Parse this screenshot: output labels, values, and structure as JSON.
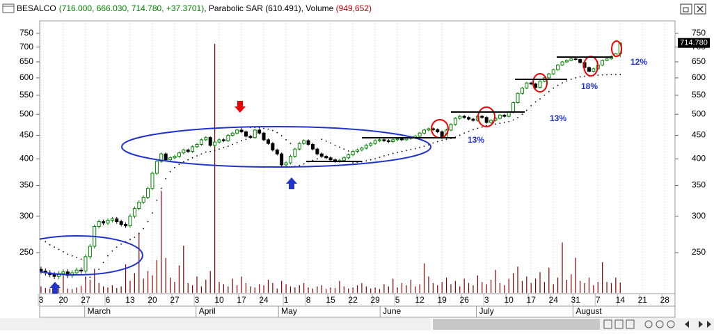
{
  "chart_data": {
    "type": "candlestick",
    "header": {
      "symbol": "BESALCO",
      "ohlc": "(716.000, 666.030, 714.780, +37.3701)",
      "sar": ", Parabolic SAR (610.491)",
      "volume_name": ", Volume ",
      "volume_value": "(949,652)"
    },
    "last_price_label": "714.780",
    "open": [
      230,
      228,
      226,
      224,
      222,
      225,
      227,
      223,
      226,
      229,
      228,
      245,
      258,
      285,
      292,
      290,
      294,
      296,
      292,
      288,
      286,
      300,
      312,
      322,
      330,
      345,
      372,
      395,
      410,
      398,
      402,
      405,
      412,
      418,
      415,
      425,
      430,
      440,
      445,
      428,
      435,
      440,
      438,
      450,
      455,
      462,
      458,
      448,
      445,
      462,
      455,
      440,
      432,
      418,
      410,
      388,
      392,
      405,
      420,
      432,
      438,
      430,
      420,
      410,
      405,
      402,
      398,
      395,
      397,
      402,
      408,
      415,
      418,
      422,
      428,
      432,
      438,
      440,
      438,
      436,
      440,
      442,
      440,
      443,
      445,
      448,
      455,
      462,
      465,
      463,
      458,
      445,
      462,
      475,
      490,
      495,
      492,
      488,
      485,
      495,
      492,
      480,
      485,
      490,
      498,
      495,
      505,
      530,
      555,
      570,
      585,
      582,
      572,
      590,
      600,
      612,
      625,
      640,
      650,
      655,
      660,
      658,
      648,
      632,
      620,
      628,
      640,
      655,
      660,
      668,
      677.41
    ],
    "high": [
      233,
      231,
      229,
      227,
      228,
      230,
      230,
      229,
      232,
      232,
      248,
      261,
      288,
      295,
      295,
      297,
      299,
      299,
      295,
      291,
      303,
      315,
      325,
      333,
      348,
      375,
      398,
      413,
      413,
      405,
      408,
      415,
      421,
      421,
      428,
      433,
      443,
      448,
      448,
      438,
      443,
      443,
      453,
      458,
      465,
      468,
      461,
      451,
      465,
      465,
      458,
      443,
      435,
      421,
      413,
      395,
      408,
      423,
      435,
      441,
      441,
      433,
      423,
      413,
      408,
      405,
      401,
      400,
      405,
      411,
      418,
      421,
      425,
      431,
      435,
      441,
      443,
      443,
      441,
      443,
      445,
      445,
      446,
      448,
      451,
      458,
      465,
      468,
      468,
      466,
      461,
      465,
      478,
      493,
      498,
      498,
      495,
      491,
      498,
      498,
      495,
      488,
      493,
      501,
      501,
      508,
      533,
      558,
      573,
      588,
      588,
      585,
      593,
      603,
      615,
      628,
      643,
      653,
      658,
      663,
      663,
      661,
      651,
      635,
      631,
      643,
      658,
      663,
      671,
      680,
      716
    ],
    "low": [
      225,
      223,
      221,
      219,
      219,
      222,
      220,
      220,
      223,
      225,
      225,
      242,
      255,
      282,
      287,
      287,
      291,
      289,
      285,
      283,
      283,
      297,
      309,
      319,
      327,
      342,
      369,
      392,
      395,
      395,
      399,
      402,
      409,
      412,
      412,
      422,
      427,
      437,
      425,
      425,
      432,
      435,
      435,
      447,
      452,
      455,
      445,
      442,
      442,
      452,
      437,
      429,
      415,
      407,
      385,
      385,
      389,
      402,
      417,
      429,
      427,
      417,
      407,
      402,
      399,
      395,
      392,
      392,
      394,
      399,
      405,
      412,
      415,
      419,
      425,
      429,
      435,
      435,
      433,
      433,
      437,
      437,
      437,
      440,
      442,
      445,
      452,
      459,
      460,
      455,
      442,
      442,
      459,
      472,
      487,
      489,
      485,
      482,
      482,
      489,
      477,
      477,
      482,
      487,
      492,
      492,
      502,
      527,
      552,
      567,
      579,
      569,
      569,
      587,
      597,
      609,
      622,
      637,
      647,
      652,
      655,
      645,
      629,
      617,
      617,
      625,
      637,
      652,
      657,
      665,
      666.03
    ],
    "close": [
      228,
      226,
      224,
      222,
      225,
      227,
      223,
      226,
      229,
      228,
      245,
      258,
      285,
      292,
      290,
      294,
      296,
      292,
      288,
      286,
      300,
      312,
      322,
      330,
      345,
      372,
      395,
      410,
      398,
      402,
      405,
      412,
      418,
      415,
      425,
      430,
      440,
      445,
      428,
      435,
      440,
      438,
      450,
      455,
      462,
      458,
      448,
      445,
      462,
      455,
      440,
      432,
      418,
      410,
      388,
      392,
      405,
      420,
      432,
      438,
      430,
      420,
      410,
      405,
      402,
      398,
      395,
      397,
      402,
      408,
      415,
      418,
      422,
      428,
      432,
      438,
      440,
      438,
      436,
      440,
      442,
      440,
      443,
      445,
      448,
      455,
      462,
      465,
      463,
      458,
      445,
      462,
      475,
      490,
      495,
      492,
      488,
      485,
      495,
      492,
      480,
      485,
      490,
      498,
      495,
      505,
      530,
      555,
      570,
      585,
      582,
      572,
      590,
      600,
      612,
      625,
      640,
      650,
      655,
      660,
      658,
      648,
      632,
      620,
      628,
      640,
      655,
      660,
      668,
      677.41,
      714.78
    ],
    "sar": [
      268,
      264,
      260,
      257,
      254,
      251,
      248,
      246,
      244,
      242,
      220,
      221,
      224,
      230,
      238,
      246,
      252,
      257,
      261,
      264,
      267,
      270,
      275,
      282,
      292,
      305,
      325,
      345,
      362,
      375,
      383,
      389,
      394,
      398,
      402,
      406,
      410,
      414,
      415,
      417,
      420,
      423,
      426,
      430,
      434,
      438,
      441,
      468,
      468,
      467,
      466,
      464,
      461,
      456,
      449,
      440,
      432,
      385,
      387,
      390,
      394,
      397,
      400,
      441,
      437,
      433,
      428,
      424,
      420,
      416,
      392,
      393,
      394,
      396,
      398,
      400,
      403,
      406,
      408,
      411,
      413,
      415,
      417,
      419,
      421,
      423,
      426,
      429,
      433,
      436,
      439,
      441,
      443,
      446,
      450,
      455,
      459,
      463,
      466,
      469,
      472,
      474,
      476,
      478,
      480,
      482,
      486,
      492,
      500,
      510,
      522,
      532,
      540,
      550,
      560,
      570,
      578,
      585,
      591,
      596,
      600,
      603,
      605,
      606,
      607,
      608,
      609,
      609.5,
      610,
      610.2,
      610.491
    ],
    "volume": [
      600000,
      450000,
      380000,
      520000,
      700000,
      1800000,
      400000,
      350000,
      500000,
      650000,
      1500000,
      1200000,
      2200000,
      900000,
      600000,
      500000,
      700000,
      450000,
      600000,
      2600000,
      1100000,
      1800000,
      5500000,
      1300000,
      2000000,
      1600000,
      3000000,
      9300000,
      3200000,
      1400000,
      1000000,
      2500000,
      4300000,
      900000,
      700000,
      1500000,
      600000,
      1200000,
      2000000,
      22700000,
      1000000,
      800000,
      600000,
      1300000,
      700000,
      1500000,
      900000,
      600000,
      500000,
      800000,
      700000,
      1200000,
      900000,
      400000,
      1100000,
      800000,
      600000,
      500000,
      700000,
      900000,
      500000,
      400000,
      600000,
      700000,
      350000,
      500000,
      450000,
      1100000,
      600000,
      400000,
      500000,
      700000,
      900000,
      600000,
      400000,
      500000,
      350000,
      800000,
      600000,
      1300000,
      500000,
      900000,
      700000,
      1200000,
      600000,
      800000,
      2700000,
      1500000,
      900000,
      700000,
      1000000,
      1400000,
      800000,
      1100000,
      600000,
      1300000,
      900000,
      700000,
      1600000,
      1000000,
      800000,
      1200000,
      2100000,
      900000,
      700000,
      1300000,
      1800000,
      2400000,
      1100000,
      1500000,
      900000,
      1300000,
      1900000,
      1000000,
      2300000,
      800000,
      1400000,
      4600000,
      1200000,
      1700000,
      3200000,
      1100000,
      900000,
      1400000,
      700000,
      1000000,
      2800000,
      1000000,
      900000,
      1400000,
      949652
    ],
    "xlim": [
      -0.3,
      142.3
    ],
    "xticks": [
      {
        "value": 0,
        "label": "3"
      },
      {
        "value": 5,
        "label": "20"
      },
      {
        "value": 10,
        "label": "27"
      },
      {
        "value": 15,
        "label": "6"
      },
      {
        "value": 20,
        "label": "13"
      },
      {
        "value": 25,
        "label": "20"
      },
      {
        "value": 30,
        "label": "27"
      },
      {
        "value": 35,
        "label": "3"
      },
      {
        "value": 40,
        "label": "10"
      },
      {
        "value": 45,
        "label": "17"
      },
      {
        "value": 50,
        "label": "24"
      },
      {
        "value": 55,
        "label": "1"
      },
      {
        "value": 60,
        "label": "8"
      },
      {
        "value": 65,
        "label": "15"
      },
      {
        "value": 70,
        "label": "22"
      },
      {
        "value": 75,
        "label": "29"
      },
      {
        "value": 80,
        "label": "5"
      },
      {
        "value": 85,
        "label": "12"
      },
      {
        "value": 90,
        "label": "19"
      },
      {
        "value": 95,
        "label": "26"
      },
      {
        "value": 100,
        "label": "3"
      },
      {
        "value": 105,
        "label": "10"
      },
      {
        "value": 110,
        "label": "17"
      },
      {
        "value": 115,
        "label": "24"
      },
      {
        "value": 120,
        "label": "31"
      },
      {
        "value": 125,
        "label": "7"
      },
      {
        "value": 130,
        "label": "14"
      },
      {
        "value": 135,
        "label": "21"
      },
      {
        "value": 140,
        "label": "28"
      }
    ],
    "months": [
      {
        "value": 9.8,
        "label": "March"
      },
      {
        "value": 34.8,
        "label": "April"
      },
      {
        "value": 53.3,
        "label": "May"
      },
      {
        "value": 76.1,
        "label": "June"
      },
      {
        "value": 97.7,
        "label": "July"
      },
      {
        "value": 119.4,
        "label": "August"
      }
    ],
    "ylim": [
      205,
      790
    ],
    "yticks": [
      250,
      300,
      350,
      400,
      450,
      500,
      550,
      600,
      650,
      700,
      750
    ],
    "log_scale": true,
    "grid": true,
    "up_color": "#008000",
    "down_color": "#000000",
    "sar_color": "#000000",
    "volume_color": "#800000",
    "annotations": [
      "13%",
      "13%",
      "18%",
      "12%"
    ]
  }
}
